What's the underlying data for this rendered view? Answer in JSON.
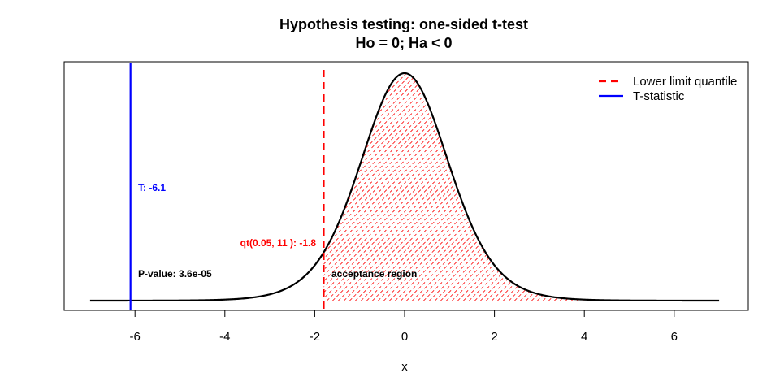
{
  "chart_data": {
    "type": "line",
    "title": [
      "Hypothesis testing: one-sided t-test",
      "Ho = 0;  Ha < 0"
    ],
    "xlabel": "x",
    "ylabel": "",
    "xlim": [
      -7,
      7
    ],
    "x_ticks": [
      "-6",
      "-4",
      "-2",
      "0",
      "2",
      "4",
      "6"
    ],
    "distribution": {
      "name": "t",
      "df": 11
    },
    "lower_limit_quantile": -1.8,
    "t_statistic": -6.1,
    "shaded_region": {
      "from": -1.8,
      "to": 7,
      "pattern": "diagonal-hatch"
    },
    "legend": [
      {
        "label": "Lower limit quantile",
        "color": "#ff0000",
        "style": "dashed"
      },
      {
        "label": "T-statistic",
        "color": "#0000ff",
        "style": "solid"
      }
    ],
    "legend_position": "top-right",
    "annotations": {
      "t_stat": "T:  -6.1",
      "quantile": "qt(0.05, 11 ):  -1.8",
      "p_value": "P-value:  3.6e-05",
      "acceptance": "acceptance region"
    },
    "colors": {
      "curve": "#000000",
      "quantile": "#ff0000",
      "tstat": "#0000ff",
      "hatch": "#ff0000"
    }
  }
}
